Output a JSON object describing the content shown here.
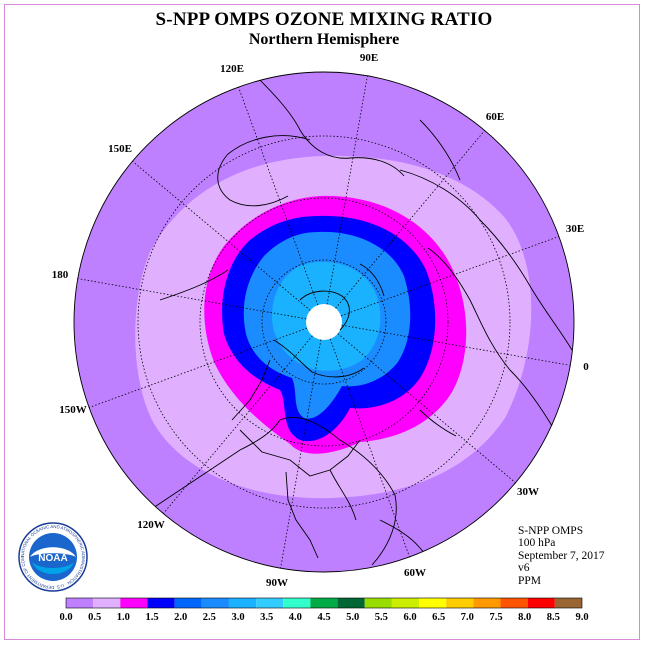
{
  "title": "S-NPP OMPS OZONE MIXING RATIO",
  "subtitle": "Northern Hemisphere",
  "longitude_labels": [
    {
      "text": "90E"
    },
    {
      "text": "60E"
    },
    {
      "text": "30E"
    },
    {
      "text": "0"
    },
    {
      "text": "30W"
    },
    {
      "text": "60W"
    },
    {
      "text": "90W"
    },
    {
      "text": "120W"
    },
    {
      "text": "150W"
    },
    {
      "text": "180"
    },
    {
      "text": "150E"
    },
    {
      "text": "120E"
    }
  ],
  "info": {
    "instrument": "S-NPP OMPS",
    "level": "100 hPa",
    "date": "September 7, 2017",
    "version": "v6",
    "units": "PPM"
  },
  "logo": {
    "text": "NOAA",
    "ring_text": "NATIONAL OCEANIC AND ATMOSPHERIC ADMINISTRATION · U.S. DEPARTMENT OF COMMERCE"
  },
  "colorbar": {
    "ticks": [
      "0.0",
      "0.5",
      "1.0",
      "1.5",
      "2.0",
      "2.5",
      "3.0",
      "3.5",
      "4.0",
      "4.5",
      "5.0",
      "5.5",
      "6.0",
      "6.5",
      "7.0",
      "7.5",
      "8.0",
      "8.5",
      "9.0"
    ],
    "colors": [
      "#bf80ff",
      "#e0b0ff",
      "#ff00ff",
      "#0000ff",
      "#0066ff",
      "#1a8cff",
      "#1ab2ff",
      "#33ccff",
      "#33ffcc",
      "#00aa44",
      "#006633",
      "#99dd00",
      "#ccee00",
      "#ffff00",
      "#ffcc00",
      "#ff9900",
      "#ff5500",
      "#ff0000",
      "#996633"
    ]
  },
  "map_colors": {
    "outer": "#bf80ff",
    "light": "#e0b0ff",
    "magenta": "#ff00ff",
    "blue": "#0000ff",
    "mid": "#1a8cff",
    "light_blue": "#1ab2ff",
    "pole": "#ffffff"
  }
}
